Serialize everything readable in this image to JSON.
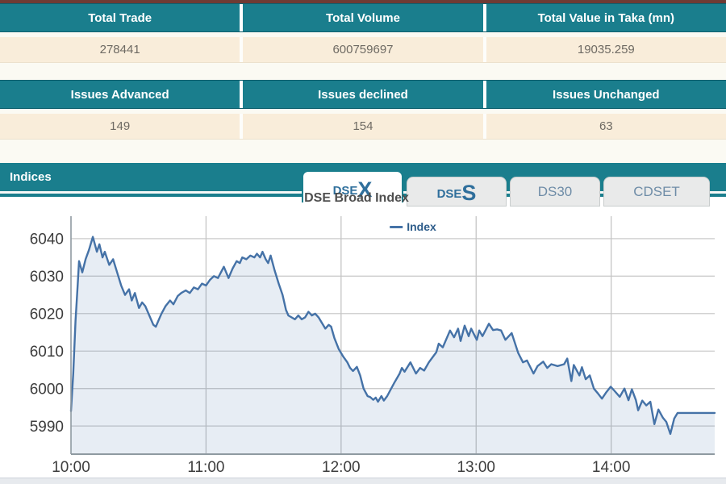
{
  "page": {
    "top_border_color": "#6f3b34",
    "teal": "#1a7e8d",
    "row_bg": "#f9edda",
    "background": "#fbfaf3"
  },
  "summary_tables": [
    {
      "headers": [
        "Total Trade",
        "Total Volume",
        "Total Value in Taka (mn)"
      ],
      "values": [
        "278441",
        "600759697",
        "19035.259"
      ]
    },
    {
      "headers": [
        "Issues Advanced",
        "Issues declined",
        "Issues Unchanged"
      ],
      "values": [
        "149",
        "154",
        "63"
      ]
    }
  ],
  "indices": {
    "section_title": "Indices",
    "tabs": [
      {
        "label": "DSEX",
        "prefix": "DSE",
        "suffix": "X",
        "active": true
      },
      {
        "label": "DSES",
        "prefix": "DSE",
        "suffix": "S",
        "active": false
      },
      {
        "label": "DS30",
        "active": false
      },
      {
        "label": "CDSET",
        "active": false
      }
    ]
  },
  "chart_data": {
    "type": "area",
    "title": "DSE Broad Index",
    "legend": [
      "Index"
    ],
    "series_name": "Index",
    "line_color": "#4572a7",
    "fill_color": "rgba(69,114,167,0.13)",
    "grid": true,
    "legend_position": "top-center",
    "x_ticks": [
      "10:00",
      "11:00",
      "12:00",
      "13:00",
      "14:00"
    ],
    "x_tick_minutes": [
      0,
      60,
      120,
      180,
      240
    ],
    "x_range_minutes": [
      0,
      286
    ],
    "y_ticks": [
      5990,
      6000,
      6010,
      6020,
      6030,
      6040
    ],
    "ylim": [
      5982.5,
      6046
    ],
    "points": [
      [
        0,
        5994
      ],
      [
        1,
        6004
      ],
      [
        2,
        6018
      ],
      [
        3,
        6028
      ],
      [
        3.6,
        6034
      ],
      [
        5,
        6031
      ],
      [
        6.5,
        6034.5
      ],
      [
        8,
        6037
      ],
      [
        9.7,
        6040.5
      ],
      [
        11.5,
        6036.5
      ],
      [
        12.6,
        6038.5
      ],
      [
        14,
        6035
      ],
      [
        15,
        6036.5
      ],
      [
        17,
        6033
      ],
      [
        18.7,
        6034.5
      ],
      [
        20.5,
        6031
      ],
      [
        22.3,
        6027.5
      ],
      [
        24,
        6025
      ],
      [
        25.8,
        6026.5
      ],
      [
        27,
        6023.5
      ],
      [
        28.4,
        6025.5
      ],
      [
        30.2,
        6021.5
      ],
      [
        31.6,
        6023
      ],
      [
        33,
        6022
      ],
      [
        34.8,
        6019.5
      ],
      [
        36.6,
        6017
      ],
      [
        37.7,
        6016.5
      ],
      [
        39.1,
        6018.5
      ],
      [
        40.2,
        6020
      ],
      [
        42,
        6022
      ],
      [
        44,
        6023.5
      ],
      [
        45.5,
        6022.5
      ],
      [
        47.4,
        6024.7
      ],
      [
        49,
        6025.5
      ],
      [
        51,
        6026.2
      ],
      [
        52.8,
        6025.5
      ],
      [
        54.6,
        6027
      ],
      [
        56.4,
        6026.5
      ],
      [
        58.2,
        6028
      ],
      [
        60,
        6027.5
      ],
      [
        61.7,
        6029
      ],
      [
        63.5,
        6030
      ],
      [
        65.3,
        6029.5
      ],
      [
        67.9,
        6032.5
      ],
      [
        70,
        6029.5
      ],
      [
        71.8,
        6032
      ],
      [
        73.6,
        6034
      ],
      [
        75,
        6033.5
      ],
      [
        76.1,
        6035
      ],
      [
        77.9,
        6034.5
      ],
      [
        79.7,
        6035.5
      ],
      [
        81.5,
        6035
      ],
      [
        82.6,
        6036
      ],
      [
        84,
        6035
      ],
      [
        85.1,
        6036.5
      ],
      [
        86.5,
        6034.5
      ],
      [
        87.6,
        6033.5
      ],
      [
        88.7,
        6035.5
      ],
      [
        90.5,
        6031.5
      ],
      [
        92.3,
        6028
      ],
      [
        94,
        6025
      ],
      [
        95.5,
        6021
      ],
      [
        96.6,
        6019.5
      ],
      [
        98,
        6019
      ],
      [
        99.5,
        6018.5
      ],
      [
        101,
        6019.5
      ],
      [
        102.5,
        6018.5
      ],
      [
        104,
        6019
      ],
      [
        105.5,
        6020.5
      ],
      [
        107,
        6019.5
      ],
      [
        108.5,
        6020
      ],
      [
        110,
        6019
      ],
      [
        111.5,
        6017.5
      ],
      [
        113,
        6016
      ],
      [
        114.5,
        6017
      ],
      [
        115.6,
        6016.5
      ],
      [
        117,
        6013.5
      ],
      [
        119,
        6010.5
      ],
      [
        121,
        6008.5
      ],
      [
        122.8,
        6007
      ],
      [
        124,
        6005.5
      ],
      [
        125.3,
        6004.7
      ],
      [
        127,
        6005.8
      ],
      [
        128.5,
        6003.5
      ],
      [
        130,
        6000
      ],
      [
        131.8,
        5998
      ],
      [
        133,
        5997.7
      ],
      [
        134.3,
        5997
      ],
      [
        135.4,
        5997.6
      ],
      [
        136.4,
        5996.5
      ],
      [
        137.9,
        5998
      ],
      [
        139,
        5996.8
      ],
      [
        140.5,
        5998
      ],
      [
        141.8,
        5999.5
      ],
      [
        143.6,
        6001.5
      ],
      [
        146,
        6004
      ],
      [
        147,
        6005.5
      ],
      [
        148.2,
        6004.5
      ],
      [
        150.8,
        6007
      ],
      [
        153.3,
        6004
      ],
      [
        155.1,
        6005.5
      ],
      [
        156.9,
        6004.8
      ],
      [
        159,
        6007
      ],
      [
        162.3,
        6009.7
      ],
      [
        163.4,
        6012
      ],
      [
        165.2,
        6011
      ],
      [
        168.4,
        6015.5
      ],
      [
        170.2,
        6013.7
      ],
      [
        172,
        6016
      ],
      [
        173.1,
        6012.7
      ],
      [
        174.9,
        6016.8
      ],
      [
        176.7,
        6014
      ],
      [
        177.8,
        6016
      ],
      [
        180.3,
        6013
      ],
      [
        181.4,
        6015.5
      ],
      [
        182.8,
        6014
      ],
      [
        185.7,
        6017.3
      ],
      [
        187.5,
        6015.6
      ],
      [
        189.3,
        6015.8
      ],
      [
        191.1,
        6015.5
      ],
      [
        193,
        6013
      ],
      [
        195.8,
        6014.8
      ],
      [
        198.7,
        6009.5
      ],
      [
        200.8,
        6007
      ],
      [
        202.6,
        6007.5
      ],
      [
        205.5,
        6004
      ],
      [
        207.3,
        6006
      ],
      [
        209.8,
        6007.2
      ],
      [
        211.6,
        6005.5
      ],
      [
        213.4,
        6006.5
      ],
      [
        216.2,
        6006
      ],
      [
        219.1,
        6006.5
      ],
      [
        220.5,
        6008
      ],
      [
        222.3,
        6002
      ],
      [
        223.4,
        6006.3
      ],
      [
        225.9,
        6003.5
      ],
      [
        227,
        6005.7
      ],
      [
        228.7,
        6002.5
      ],
      [
        230.5,
        6003.5
      ],
      [
        232.3,
        6000
      ],
      [
        234.1,
        5998.7
      ],
      [
        235.9,
        5997.3
      ],
      [
        237.7,
        5998.9
      ],
      [
        239.8,
        6000.5
      ],
      [
        241.3,
        5999.5
      ],
      [
        243.8,
        5997.8
      ],
      [
        245.9,
        6000
      ],
      [
        247.7,
        5996.9
      ],
      [
        249.2,
        5999.8
      ],
      [
        251,
        5996.9
      ],
      [
        252,
        5994.2
      ],
      [
        253.8,
        5996.8
      ],
      [
        255.6,
        5995.5
      ],
      [
        257.4,
        5996.5
      ],
      [
        259.2,
        5990.5
      ],
      [
        261,
        5994.4
      ],
      [
        263,
        5992.2
      ],
      [
        264.5,
        5991.1
      ],
      [
        266.3,
        5987.9
      ],
      [
        268,
        5992
      ],
      [
        269.5,
        5993.5
      ],
      [
        286,
        5993.5
      ]
    ]
  }
}
